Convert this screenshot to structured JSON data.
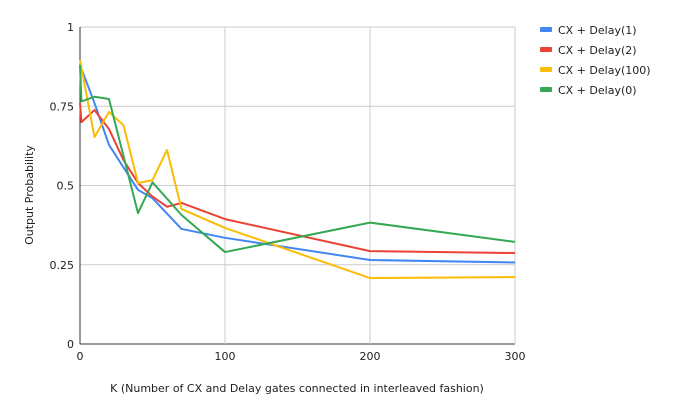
{
  "chart_data": {
    "type": "line",
    "title": "",
    "xlabel": "K (Number of CX and Delay gates connected in interleaved fashion)",
    "ylabel": "Output Probability",
    "xlim": [
      0,
      300
    ],
    "ylim": [
      0,
      1
    ],
    "x_ticks": [
      0,
      100,
      200,
      300
    ],
    "y_ticks": [
      0,
      0.25,
      0.5,
      0.75,
      1
    ],
    "y_tick_labels": [
      "0",
      "0.25",
      "0.5",
      "0.75",
      "1"
    ],
    "x_tick_labels": [
      "0",
      "100",
      "200",
      "300"
    ],
    "grid": true,
    "legend_position": "right",
    "series": [
      {
        "name": "CX + Delay(1)",
        "color": "#4285F4",
        "points": [
          [
            0,
            0.88
          ],
          [
            10,
            0.76
          ],
          [
            20,
            0.628
          ],
          [
            40,
            0.486
          ],
          [
            50,
            0.46
          ],
          [
            70,
            0.363
          ],
          [
            100,
            0.335
          ],
          [
            200,
            0.265
          ],
          [
            300,
            0.257
          ]
        ]
      },
      {
        "name": "CX + Delay(2)",
        "color": "#EA4335",
        "points": [
          [
            0,
            0.76
          ],
          [
            1,
            0.7
          ],
          [
            10,
            0.738
          ],
          [
            20,
            0.678
          ],
          [
            30,
            0.58
          ],
          [
            40,
            0.508
          ],
          [
            50,
            0.465
          ],
          [
            60,
            0.433
          ],
          [
            70,
            0.445
          ],
          [
            100,
            0.394
          ],
          [
            200,
            0.293
          ],
          [
            300,
            0.287
          ]
        ]
      },
      {
        "name": "CX + Delay(100)",
        "color": "#FBBC04",
        "points": [
          [
            0,
            0.896
          ],
          [
            10,
            0.653
          ],
          [
            20,
            0.732
          ],
          [
            30,
            0.69
          ],
          [
            40,
            0.508
          ],
          [
            50,
            0.517
          ],
          [
            60,
            0.612
          ],
          [
            70,
            0.426
          ],
          [
            100,
            0.366
          ],
          [
            200,
            0.208
          ],
          [
            300,
            0.211
          ]
        ]
      },
      {
        "name": "CX + Delay(0)",
        "color": "#34A853",
        "points": [
          [
            0,
            0.88
          ],
          [
            1,
            0.765
          ],
          [
            10,
            0.78
          ],
          [
            20,
            0.773
          ],
          [
            40,
            0.413
          ],
          [
            50,
            0.51
          ],
          [
            70,
            0.407
          ],
          [
            100,
            0.29
          ],
          [
            200,
            0.383
          ],
          [
            300,
            0.322
          ]
        ]
      }
    ]
  }
}
